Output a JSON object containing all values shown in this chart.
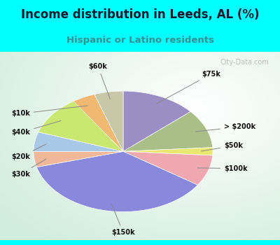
{
  "title": "Income distribution in Leeds, AL (%)",
  "subtitle": "Hispanic or Latino residents",
  "title_color": "#1a1a2e",
  "subtitle_color": "#3a8f8f",
  "background_outer": "#00FFFF",
  "watermark": "City-Data.com",
  "slices": [
    {
      "label": "$75k",
      "value": 13,
      "color": "#9b8ec4"
    },
    {
      "label": "> $200k",
      "value": 10,
      "color": "#aabf88"
    },
    {
      "label": "$50k",
      "value": 2,
      "color": "#e8e870"
    },
    {
      "label": "$100k",
      "value": 8,
      "color": "#f0a8b0"
    },
    {
      "label": "$150k",
      "value": 35,
      "color": "#8888dd"
    },
    {
      "label": "$30k",
      "value": 4,
      "color": "#f0b898"
    },
    {
      "label": "$20k",
      "value": 5,
      "color": "#a8c8e8"
    },
    {
      "label": "$40k",
      "value": 10,
      "color": "#c8e870"
    },
    {
      "label": "$10k",
      "value": 4,
      "color": "#f0b870"
    },
    {
      "label": "$60k",
      "value": 5,
      "color": "#c8c8a8"
    }
  ]
}
